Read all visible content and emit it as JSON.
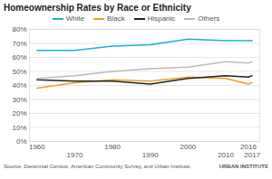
{
  "chart_data": {
    "type": "line",
    "title": "Homeownership Rates by Race or Ethnicity",
    "x": [
      1960,
      1970,
      1980,
      1990,
      2000,
      2010,
      2016,
      2017
    ],
    "xlim": [
      1958,
      2019
    ],
    "xticks": [
      1960,
      1970,
      1980,
      1990,
      2000,
      2010,
      2016,
      2017
    ],
    "ylim": [
      0,
      80
    ],
    "yticks": [
      {
        "value": 0,
        "label": "0%"
      },
      {
        "value": 10,
        "label": "10%"
      },
      {
        "value": 20,
        "label": "20%"
      },
      {
        "value": 30,
        "label": "30%"
      },
      {
        "value": 40,
        "label": "40%"
      },
      {
        "value": 50,
        "label": "50%"
      },
      {
        "value": 60,
        "label": "60%"
      },
      {
        "value": 70,
        "label": "70%"
      },
      {
        "value": 80,
        "label": "80%"
      }
    ],
    "grid": true,
    "legend": "top",
    "series": [
      {
        "name": "White",
        "color": "#1AAFDB",
        "values": [
          65,
          65,
          68,
          69,
          73,
          72,
          72,
          72
        ]
      },
      {
        "name": "Black",
        "color": "#E8A020",
        "values": [
          38,
          42,
          44,
          43,
          46,
          45,
          41,
          42
        ]
      },
      {
        "name": "Hispanic",
        "color": "#222222",
        "values": [
          44,
          43,
          43,
          41,
          45,
          47,
          46,
          47
        ]
      },
      {
        "name": "Others",
        "color": "#BBBBBB",
        "values": [
          45,
          47,
          50,
          52,
          53,
          57,
          56,
          57
        ]
      }
    ],
    "annotations": [
      "Source: Decennial Census, American Community Survey, and Urban Institute.",
      "URBAN INSTITUTE"
    ]
  }
}
